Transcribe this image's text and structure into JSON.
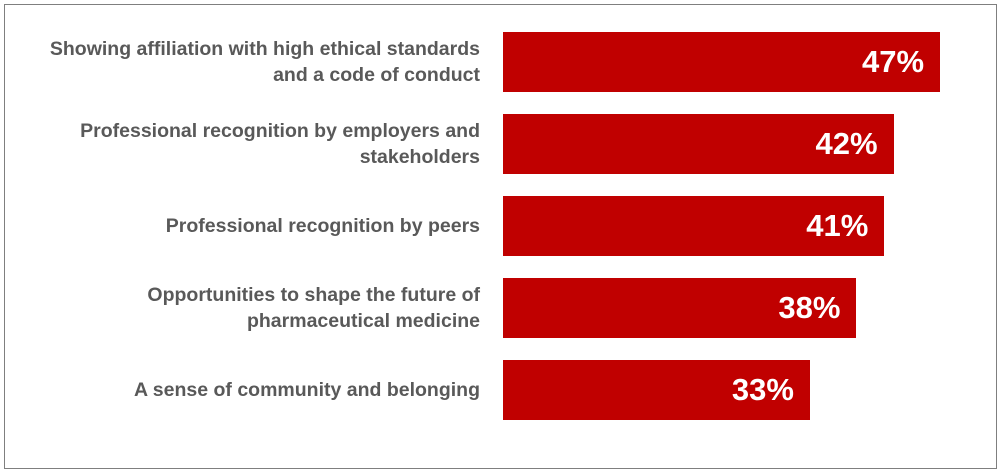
{
  "chart_data": {
    "type": "bar",
    "orientation": "horizontal",
    "categories": [
      "Showing affiliation with high ethical standards and a code of conduct",
      "Professional recognition by employers and stakeholders",
      "Professional recognition by peers",
      "Opportunities to shape the future of pharmaceutical medicine",
      "A sense of community and belonging"
    ],
    "values": [
      47,
      42,
      41,
      38,
      33
    ],
    "value_labels": [
      "47%",
      "42%",
      "41%",
      "38%",
      "33%"
    ],
    "color": "#c00000"
  }
}
